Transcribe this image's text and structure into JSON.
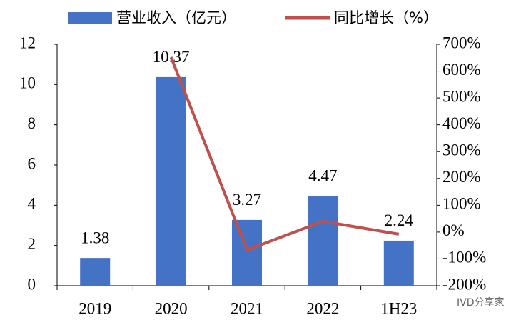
{
  "chart_data": {
    "type": "bar",
    "categories": [
      "2019",
      "2020",
      "2021",
      "2022",
      "1H23"
    ],
    "series": [
      {
        "name": "营业收入（亿元）",
        "type": "bar",
        "color": "#4472c4",
        "values": [
          1.38,
          10.37,
          3.27,
          4.47,
          2.24
        ]
      },
      {
        "name": "同比增长（%）",
        "type": "line",
        "axis": "y2",
        "color": "#c0504d",
        "values": [
          null,
          652,
          -67,
          40,
          -8
        ]
      }
    ],
    "ylim": [
      0,
      12
    ],
    "yticks": [
      0,
      2,
      4,
      6,
      8,
      10,
      12
    ],
    "y2lim": [
      -200,
      700
    ],
    "y2ticks": [
      {
        "value": -200,
        "label": "-200%"
      },
      {
        "value": -100,
        "label": "-100%"
      },
      {
        "value": 0,
        "label": "0%"
      },
      {
        "value": 100,
        "label": "100%"
      },
      {
        "value": 200,
        "label": "200%"
      },
      {
        "value": 300,
        "label": "300%"
      },
      {
        "value": 400,
        "label": "400%"
      },
      {
        "value": 500,
        "label": "500%"
      },
      {
        "value": 600,
        "label": "600%"
      },
      {
        "value": 700,
        "label": "700%"
      }
    ],
    "legend": "top",
    "watermark": "IVD分享家"
  }
}
